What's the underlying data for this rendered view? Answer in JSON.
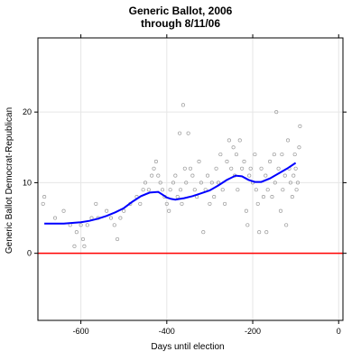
{
  "chart_data": {
    "type": "scatter",
    "title": "Generic Ballot, 2006",
    "subtitle": "through 8/11/06",
    "xlabel": "Days until election",
    "ylabel": "Generic Ballot Democrat-Republican",
    "xlim": [
      -700,
      10
    ],
    "ylim": [
      -9.5,
      30.5
    ],
    "xticks": [
      -600,
      -400,
      -200,
      0
    ],
    "yticks": [
      0,
      10,
      20
    ],
    "grid": true,
    "reference_line": {
      "y": 0,
      "color": "#ff0000"
    },
    "series": [
      {
        "type": "scatter",
        "color": "#9a9a9a",
        "points": [
          [
            -688,
            7
          ],
          [
            -685,
            8
          ],
          [
            -660,
            5
          ],
          [
            -640,
            6
          ],
          [
            -625,
            4
          ],
          [
            -615,
            1
          ],
          [
            -610,
            3
          ],
          [
            -600,
            4
          ],
          [
            -595,
            2
          ],
          [
            -592,
            1
          ],
          [
            -585,
            4
          ],
          [
            -575,
            5
          ],
          [
            -565,
            7
          ],
          [
            -560,
            5
          ],
          [
            -540,
            6
          ],
          [
            -530,
            5
          ],
          [
            -522,
            4
          ],
          [
            -515,
            2
          ],
          [
            -508,
            5
          ],
          [
            -500,
            6
          ],
          [
            -485,
            7
          ],
          [
            -470,
            8
          ],
          [
            -462,
            7
          ],
          [
            -455,
            9
          ],
          [
            -450,
            10
          ],
          [
            -442,
            9
          ],
          [
            -435,
            11
          ],
          [
            -430,
            12
          ],
          [
            -425,
            13
          ],
          [
            -420,
            11
          ],
          [
            -415,
            10
          ],
          [
            -410,
            9
          ],
          [
            -405,
            8
          ],
          [
            -400,
            7
          ],
          [
            -395,
            6
          ],
          [
            -392,
            9
          ],
          [
            -385,
            10
          ],
          [
            -380,
            11
          ],
          [
            -375,
            8
          ],
          [
            -370,
            17
          ],
          [
            -368,
            9
          ],
          [
            -365,
            7
          ],
          [
            -362,
            21
          ],
          [
            -358,
            12
          ],
          [
            -355,
            10
          ],
          [
            -350,
            17
          ],
          [
            -345,
            12
          ],
          [
            -340,
            11
          ],
          [
            -335,
            9
          ],
          [
            -330,
            8
          ],
          [
            -325,
            13
          ],
          [
            -320,
            10
          ],
          [
            -315,
            3
          ],
          [
            -310,
            9
          ],
          [
            -305,
            11
          ],
          [
            -300,
            7
          ],
          [
            -295,
            10
          ],
          [
            -290,
            8
          ],
          [
            -285,
            12
          ],
          [
            -280,
            10
          ],
          [
            -275,
            14
          ],
          [
            -270,
            9
          ],
          [
            -265,
            7
          ],
          [
            -260,
            13
          ],
          [
            -255,
            16
          ],
          [
            -250,
            12
          ],
          [
            -245,
            15
          ],
          [
            -242,
            11
          ],
          [
            -238,
            14
          ],
          [
            -235,
            9
          ],
          [
            -230,
            16
          ],
          [
            -225,
            12
          ],
          [
            -220,
            13
          ],
          [
            -215,
            6
          ],
          [
            -212,
            4
          ],
          [
            -208,
            11
          ],
          [
            -205,
            12
          ],
          [
            -200,
            10
          ],
          [
            -195,
            14
          ],
          [
            -192,
            9
          ],
          [
            -188,
            7
          ],
          [
            -185,
            3
          ],
          [
            -180,
            12
          ],
          [
            -175,
            8
          ],
          [
            -170,
            11
          ],
          [
            -168,
            3
          ],
          [
            -165,
            9
          ],
          [
            -160,
            13
          ],
          [
            -155,
            8
          ],
          [
            -150,
            14
          ],
          [
            -148,
            10
          ],
          [
            -145,
            20
          ],
          [
            -140,
            12
          ],
          [
            -135,
            6
          ],
          [
            -132,
            14
          ],
          [
            -130,
            9
          ],
          [
            -125,
            11
          ],
          [
            -122,
            4
          ],
          [
            -118,
            16
          ],
          [
            -115,
            12
          ],
          [
            -112,
            10
          ],
          [
            -108,
            8
          ],
          [
            -105,
            11
          ],
          [
            -102,
            14
          ],
          [
            -100,
            12
          ],
          [
            -98,
            9
          ],
          [
            -95,
            10
          ],
          [
            -92,
            15
          ],
          [
            -90,
            18
          ]
        ]
      },
      {
        "type": "line",
        "color": "#0000ff",
        "points": [
          [
            -685,
            4.2
          ],
          [
            -660,
            4.2
          ],
          [
            -640,
            4.2
          ],
          [
            -620,
            4.3
          ],
          [
            -600,
            4.4
          ],
          [
            -580,
            4.6
          ],
          [
            -560,
            4.9
          ],
          [
            -540,
            5.3
          ],
          [
            -520,
            5.8
          ],
          [
            -500,
            6.4
          ],
          [
            -480,
            7.3
          ],
          [
            -460,
            8.1
          ],
          [
            -440,
            8.6
          ],
          [
            -420,
            8.7
          ],
          [
            -410,
            8.3
          ],
          [
            -400,
            7.9
          ],
          [
            -390,
            7.7
          ],
          [
            -380,
            7.6
          ],
          [
            -370,
            7.7
          ],
          [
            -360,
            7.8
          ],
          [
            -340,
            8.1
          ],
          [
            -320,
            8.5
          ],
          [
            -300,
            8.9
          ],
          [
            -280,
            9.6
          ],
          [
            -260,
            10.4
          ],
          [
            -240,
            11.0
          ],
          [
            -225,
            10.9
          ],
          [
            -210,
            10.4
          ],
          [
            -195,
            10.1
          ],
          [
            -180,
            10.1
          ],
          [
            -160,
            10.6
          ],
          [
            -140,
            11.3
          ],
          [
            -120,
            12.0
          ],
          [
            -100,
            12.8
          ]
        ]
      }
    ]
  }
}
